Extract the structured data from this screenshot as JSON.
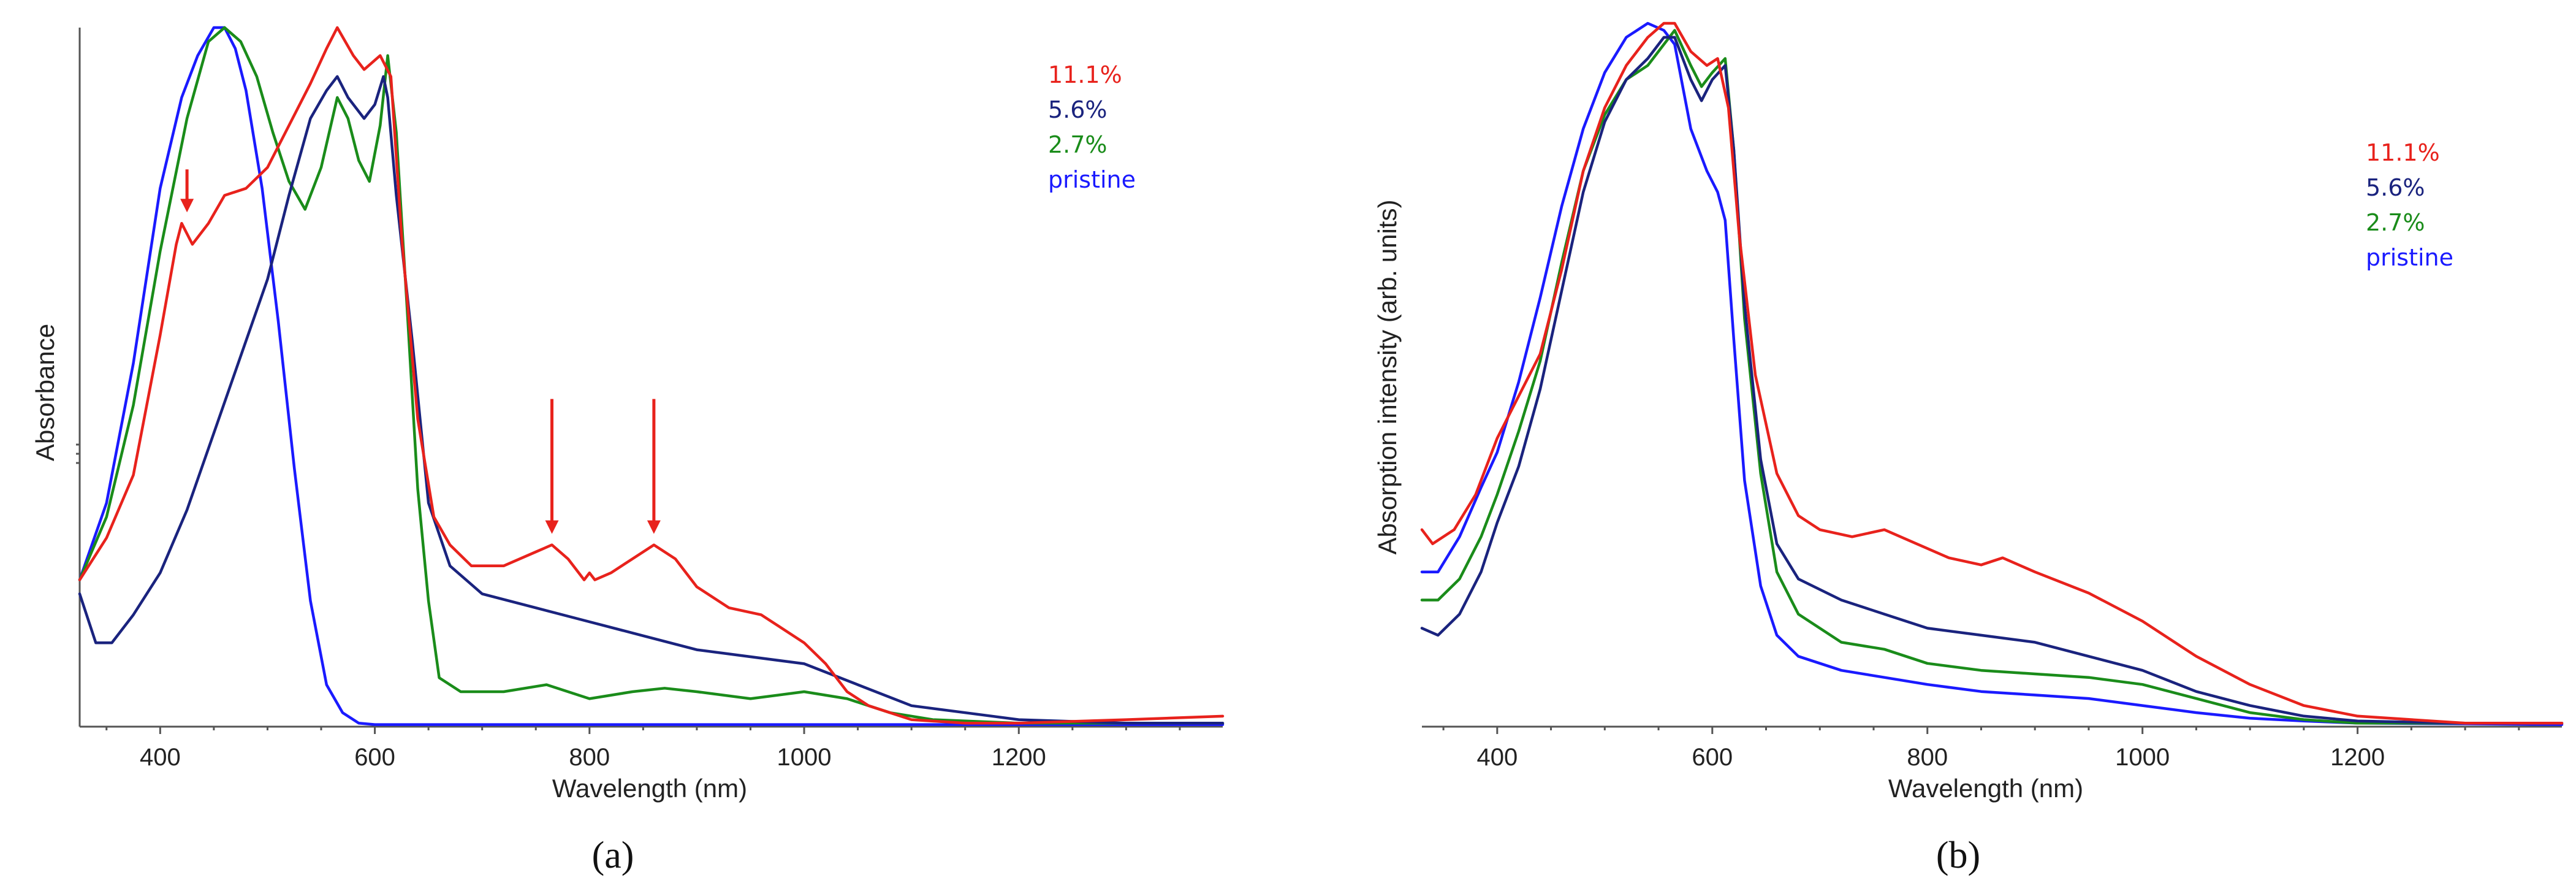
{
  "chart_data": [
    {
      "type": "line",
      "panel_label": "(a)",
      "xlabel": "Wavelength (nm)",
      "ylabel": "Absorbance",
      "xlim": [
        325,
        1390
      ],
      "ylim": [
        0,
        1.0
      ],
      "xticks": [
        400,
        600,
        800,
        1000,
        1200
      ],
      "legend_position": "top-right",
      "series": [
        {
          "name": "11.1%",
          "color": "#e8221c",
          "x": [
            325,
            350,
            375,
            400,
            415,
            420,
            430,
            445,
            460,
            480,
            500,
            520,
            540,
            555,
            565,
            580,
            590,
            605,
            615,
            625,
            640,
            655,
            670,
            690,
            720,
            750,
            765,
            780,
            795,
            800,
            805,
            820,
            840,
            860,
            880,
            900,
            930,
            960,
            1000,
            1020,
            1040,
            1060,
            1080,
            1100,
            1150,
            1200,
            1300,
            1390
          ],
          "y": [
            0.21,
            0.27,
            0.36,
            0.56,
            0.69,
            0.72,
            0.69,
            0.72,
            0.76,
            0.77,
            0.8,
            0.86,
            0.92,
            0.97,
            1.0,
            0.96,
            0.94,
            0.96,
            0.93,
            0.7,
            0.44,
            0.3,
            0.26,
            0.23,
            0.23,
            0.25,
            0.26,
            0.24,
            0.21,
            0.22,
            0.21,
            0.22,
            0.24,
            0.26,
            0.24,
            0.2,
            0.17,
            0.16,
            0.12,
            0.09,
            0.05,
            0.03,
            0.02,
            0.01,
            0.005,
            0.005,
            0.01,
            0.015
          ]
        },
        {
          "name": "5.6%",
          "color": "#1a237e",
          "x": [
            325,
            340,
            355,
            375,
            400,
            425,
            450,
            475,
            500,
            520,
            540,
            555,
            565,
            575,
            590,
            600,
            608,
            612,
            620,
            635,
            650,
            670,
            700,
            750,
            800,
            850,
            900,
            950,
            1000,
            1050,
            1100,
            1150,
            1200,
            1300,
            1390
          ],
          "y": [
            0.19,
            0.12,
            0.12,
            0.16,
            0.22,
            0.31,
            0.42,
            0.53,
            0.64,
            0.76,
            0.87,
            0.91,
            0.93,
            0.9,
            0.87,
            0.89,
            0.93,
            0.9,
            0.76,
            0.55,
            0.32,
            0.23,
            0.19,
            0.17,
            0.15,
            0.13,
            0.11,
            0.1,
            0.09,
            0.06,
            0.03,
            0.02,
            0.01,
            0.005,
            0.005
          ]
        },
        {
          "name": "2.7%",
          "color": "#1a8c1a",
          "x": [
            325,
            350,
            375,
            400,
            425,
            445,
            460,
            475,
            490,
            505,
            520,
            535,
            550,
            565,
            575,
            585,
            595,
            605,
            612,
            620,
            630,
            640,
            650,
            660,
            680,
            720,
            760,
            780,
            800,
            840,
            870,
            900,
            950,
            1000,
            1040,
            1080,
            1120,
            1200,
            1300,
            1390
          ],
          "y": [
            0.21,
            0.3,
            0.46,
            0.68,
            0.87,
            0.98,
            1.0,
            0.98,
            0.93,
            0.85,
            0.78,
            0.74,
            0.8,
            0.9,
            0.87,
            0.81,
            0.78,
            0.86,
            0.96,
            0.85,
            0.6,
            0.34,
            0.18,
            0.07,
            0.05,
            0.05,
            0.06,
            0.05,
            0.04,
            0.05,
            0.055,
            0.05,
            0.04,
            0.05,
            0.04,
            0.02,
            0.01,
            0.005,
            0.005,
            0.005
          ]
        },
        {
          "name": "pristine",
          "color": "#1a1aff",
          "x": [
            325,
            350,
            375,
            400,
            420,
            435,
            450,
            460,
            470,
            480,
            495,
            510,
            525,
            540,
            555,
            570,
            585,
            600,
            700,
            800,
            900,
            1000,
            1100,
            1200,
            1300,
            1390
          ],
          "y": [
            0.21,
            0.32,
            0.52,
            0.77,
            0.9,
            0.96,
            1.0,
            1.0,
            0.97,
            0.91,
            0.77,
            0.58,
            0.37,
            0.18,
            0.06,
            0.02,
            0.005,
            0.003,
            0.003,
            0.003,
            0.003,
            0.003,
            0.003,
            0.003,
            0.003,
            0.003
          ]
        }
      ],
      "annotations": [
        {
          "type": "arrow",
          "x": 425,
          "y": 0.72,
          "color": "#e8221c"
        },
        {
          "type": "arrow",
          "x": 765,
          "y": 0.26,
          "color": "#e8221c"
        },
        {
          "type": "arrow",
          "x": 860,
          "y": 0.26,
          "color": "#e8221c"
        }
      ]
    },
    {
      "type": "line",
      "panel_label": "(b)",
      "xlabel": "Wavelength (nm)",
      "ylabel": "Absorption intensity (arb. units)",
      "xlim": [
        330,
        1390
      ],
      "ylim": [
        0,
        1.0
      ],
      "xticks": [
        400,
        600,
        800,
        1000,
        1200
      ],
      "legend_position": "top-right",
      "series": [
        {
          "name": "11.1%",
          "color": "#e8221c",
          "x": [
            330,
            340,
            360,
            380,
            400,
            420,
            440,
            460,
            480,
            500,
            520,
            540,
            555,
            565,
            580,
            595,
            605,
            615,
            625,
            640,
            660,
            680,
            700,
            730,
            760,
            790,
            820,
            850,
            870,
            900,
            950,
            1000,
            1050,
            1100,
            1150,
            1200,
            1300,
            1390
          ],
          "y": [
            0.28,
            0.26,
            0.28,
            0.33,
            0.41,
            0.47,
            0.53,
            0.65,
            0.79,
            0.88,
            0.94,
            0.98,
            1.0,
            1.0,
            0.96,
            0.94,
            0.95,
            0.88,
            0.7,
            0.5,
            0.36,
            0.3,
            0.28,
            0.27,
            0.28,
            0.26,
            0.24,
            0.23,
            0.24,
            0.22,
            0.19,
            0.15,
            0.1,
            0.06,
            0.03,
            0.015,
            0.005,
            0.005
          ]
        },
        {
          "name": "5.6%",
          "color": "#1a237e",
          "x": [
            330,
            345,
            365,
            385,
            400,
            420,
            440,
            460,
            480,
            500,
            520,
            540,
            555,
            565,
            580,
            590,
            600,
            612,
            620,
            630,
            645,
            660,
            680,
            720,
            760,
            800,
            850,
            900,
            950,
            1000,
            1050,
            1100,
            1150,
            1200,
            1300,
            1390
          ],
          "y": [
            0.14,
            0.13,
            0.16,
            0.22,
            0.29,
            0.37,
            0.48,
            0.62,
            0.76,
            0.86,
            0.92,
            0.95,
            0.98,
            0.98,
            0.92,
            0.89,
            0.92,
            0.94,
            0.82,
            0.6,
            0.38,
            0.26,
            0.21,
            0.18,
            0.16,
            0.14,
            0.13,
            0.12,
            0.1,
            0.08,
            0.05,
            0.03,
            0.015,
            0.008,
            0.005,
            0.005
          ]
        },
        {
          "name": "2.7%",
          "color": "#1a8c1a",
          "x": [
            330,
            345,
            365,
            385,
            400,
            420,
            440,
            460,
            480,
            500,
            520,
            540,
            555,
            565,
            580,
            590,
            600,
            612,
            620,
            630,
            645,
            660,
            680,
            720,
            760,
            800,
            850,
            900,
            950,
            1000,
            1050,
            1100,
            1150,
            1200,
            1300,
            1390
          ],
          "y": [
            0.18,
            0.18,
            0.21,
            0.27,
            0.33,
            0.42,
            0.52,
            0.66,
            0.79,
            0.87,
            0.92,
            0.94,
            0.97,
            0.99,
            0.94,
            0.91,
            0.93,
            0.95,
            0.82,
            0.58,
            0.36,
            0.22,
            0.16,
            0.12,
            0.11,
            0.09,
            0.08,
            0.075,
            0.07,
            0.06,
            0.04,
            0.02,
            0.01,
            0.005,
            0.005,
            0.005
          ]
        },
        {
          "name": "pristine",
          "color": "#1a1aff",
          "x": [
            330,
            345,
            365,
            385,
            400,
            420,
            440,
            460,
            480,
            500,
            520,
            540,
            555,
            565,
            580,
            595,
            605,
            612,
            620,
            630,
            645,
            660,
            680,
            720,
            760,
            800,
            850,
            900,
            950,
            1000,
            1050,
            1100,
            1150,
            1200,
            1300,
            1390
          ],
          "y": [
            0.22,
            0.22,
            0.27,
            0.34,
            0.39,
            0.49,
            0.61,
            0.74,
            0.85,
            0.93,
            0.98,
            1.0,
            0.99,
            0.97,
            0.85,
            0.79,
            0.76,
            0.72,
            0.55,
            0.35,
            0.2,
            0.13,
            0.1,
            0.08,
            0.07,
            0.06,
            0.05,
            0.045,
            0.04,
            0.03,
            0.02,
            0.012,
            0.008,
            0.005,
            0.004,
            0.003
          ]
        }
      ],
      "annotations": []
    }
  ]
}
